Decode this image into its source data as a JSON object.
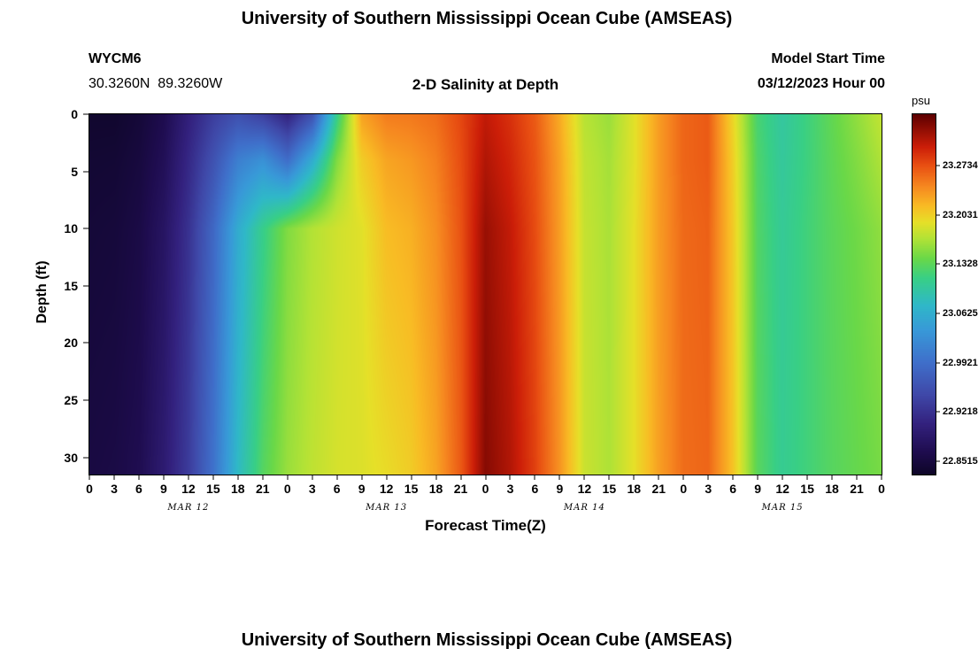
{
  "page": {
    "top_title": "University of Southern Mississippi Ocean Cube (AMSEAS)",
    "bottom_title": "University of Southern Mississippi Ocean Cube (AMSEAS)"
  },
  "header": {
    "station_id": "WYCM6",
    "coordinates": "30.3260N  89.3260W",
    "subtitle": "2-D Salinity at Depth",
    "model_start_label": "Model Start Time",
    "model_start_value": "03/12/2023 Hour 00"
  },
  "chart_data": {
    "type": "heatmap",
    "title": "2-D Salinity at Depth",
    "xlabel": "Forecast Time(Z)",
    "ylabel": "Depth (ft)",
    "units": "psu",
    "x_hours": [
      0,
      3,
      6,
      9,
      12,
      15,
      18,
      21,
      24,
      27,
      30,
      33,
      36,
      39,
      42,
      45,
      48,
      51,
      54,
      57,
      60,
      63,
      66,
      69,
      72,
      75,
      78,
      81,
      84,
      87,
      90,
      93,
      96
    ],
    "x_tick_labels": [
      "0",
      "3",
      "6",
      "9",
      "12",
      "15",
      "18",
      "21",
      "0",
      "3",
      "6",
      "9",
      "12",
      "15",
      "18",
      "21",
      "0",
      "3",
      "6",
      "9",
      "12",
      "15",
      "18",
      "21",
      "0",
      "3",
      "6",
      "9",
      "12",
      "15",
      "18",
      "21",
      "0"
    ],
    "day_labels": [
      {
        "label": "MAR 12",
        "hour": 12
      },
      {
        "label": "MAR 13",
        "hour": 36
      },
      {
        "label": "MAR 14",
        "hour": 60
      },
      {
        "label": "MAR 15",
        "hour": 84
      }
    ],
    "y_ticks": [
      0,
      5,
      10,
      15,
      20,
      25,
      30
    ],
    "depth_axis_max": 31.5,
    "depth_breakpoints": [
      0,
      4,
      10,
      32
    ],
    "values_psu": [
      [
        22.838,
        22.842,
        22.846,
        22.854
      ],
      [
        22.838,
        22.843,
        22.848,
        22.857
      ],
      [
        22.846,
        22.851,
        22.857,
        22.866
      ],
      [
        22.864,
        22.871,
        22.881,
        22.894
      ],
      [
        22.902,
        22.912,
        22.923,
        22.934
      ],
      [
        22.935,
        22.958,
        22.984,
        22.996
      ],
      [
        22.955,
        23.01,
        23.06,
        23.078
      ],
      [
        22.936,
        23.03,
        23.11,
        23.13
      ],
      [
        22.906,
        22.99,
        23.15,
        23.16
      ],
      [
        22.956,
        23.06,
        23.17,
        23.175
      ],
      [
        23.11,
        23.15,
        23.182,
        23.185
      ],
      [
        23.23,
        23.205,
        23.19,
        23.188
      ],
      [
        23.25,
        23.228,
        23.215,
        23.195
      ],
      [
        23.252,
        23.235,
        23.222,
        23.205
      ],
      [
        23.258,
        23.248,
        23.24,
        23.228
      ],
      [
        23.278,
        23.275,
        23.272,
        23.268
      ],
      [
        23.305,
        23.312,
        23.322,
        23.33
      ],
      [
        23.29,
        23.296,
        23.304,
        23.312
      ],
      [
        23.268,
        23.272,
        23.276,
        23.282
      ],
      [
        23.225,
        23.23,
        23.232,
        23.238
      ],
      [
        23.172,
        23.176,
        23.178,
        23.18
      ],
      [
        23.16,
        23.164,
        23.166,
        23.168
      ],
      [
        23.19,
        23.19,
        23.192,
        23.192
      ],
      [
        23.232,
        23.232,
        23.232,
        23.23
      ],
      [
        23.262,
        23.262,
        23.26,
        23.258
      ],
      [
        23.268,
        23.268,
        23.265,
        23.262
      ],
      [
        23.2,
        23.205,
        23.208,
        23.212
      ],
      [
        23.122,
        23.126,
        23.128,
        23.132
      ],
      [
        23.098,
        23.1,
        23.103,
        23.106
      ],
      [
        23.116,
        23.116,
        23.118,
        23.118
      ],
      [
        23.136,
        23.134,
        23.132,
        23.13
      ],
      [
        23.156,
        23.15,
        23.143,
        23.138
      ],
      [
        23.176,
        23.168,
        23.156,
        23.146
      ]
    ],
    "colorbar": {
      "min": 22.8326,
      "max": 23.3466,
      "tick_values": [
        23.2734,
        23.2031,
        23.1328,
        23.0625,
        22.9921,
        22.9218,
        22.8515
      ],
      "tick_labels": [
        "23.2734",
        "23.2031",
        "23.1328",
        "23.0625",
        "22.9921",
        "22.9218",
        "22.8515"
      ]
    },
    "colormap_stops": [
      {
        "t": 0.0,
        "color": "#0e0628"
      },
      {
        "t": 0.06,
        "color": "#1e0c4e"
      },
      {
        "t": 0.14,
        "color": "#33217e"
      },
      {
        "t": 0.22,
        "color": "#3f48a8"
      },
      {
        "t": 0.31,
        "color": "#3f6fca"
      },
      {
        "t": 0.4,
        "color": "#3899d8"
      },
      {
        "t": 0.47,
        "color": "#2fb8c8"
      },
      {
        "t": 0.545,
        "color": "#38cf86"
      },
      {
        "t": 0.6,
        "color": "#6ad848"
      },
      {
        "t": 0.655,
        "color": "#b2e236"
      },
      {
        "t": 0.7,
        "color": "#e6e028"
      },
      {
        "t": 0.745,
        "color": "#f8bc24"
      },
      {
        "t": 0.8,
        "color": "#f68820"
      },
      {
        "t": 0.86,
        "color": "#e84e12"
      },
      {
        "t": 0.91,
        "color": "#cc1e08"
      },
      {
        "t": 1.0,
        "color": "#5e0000"
      }
    ]
  }
}
